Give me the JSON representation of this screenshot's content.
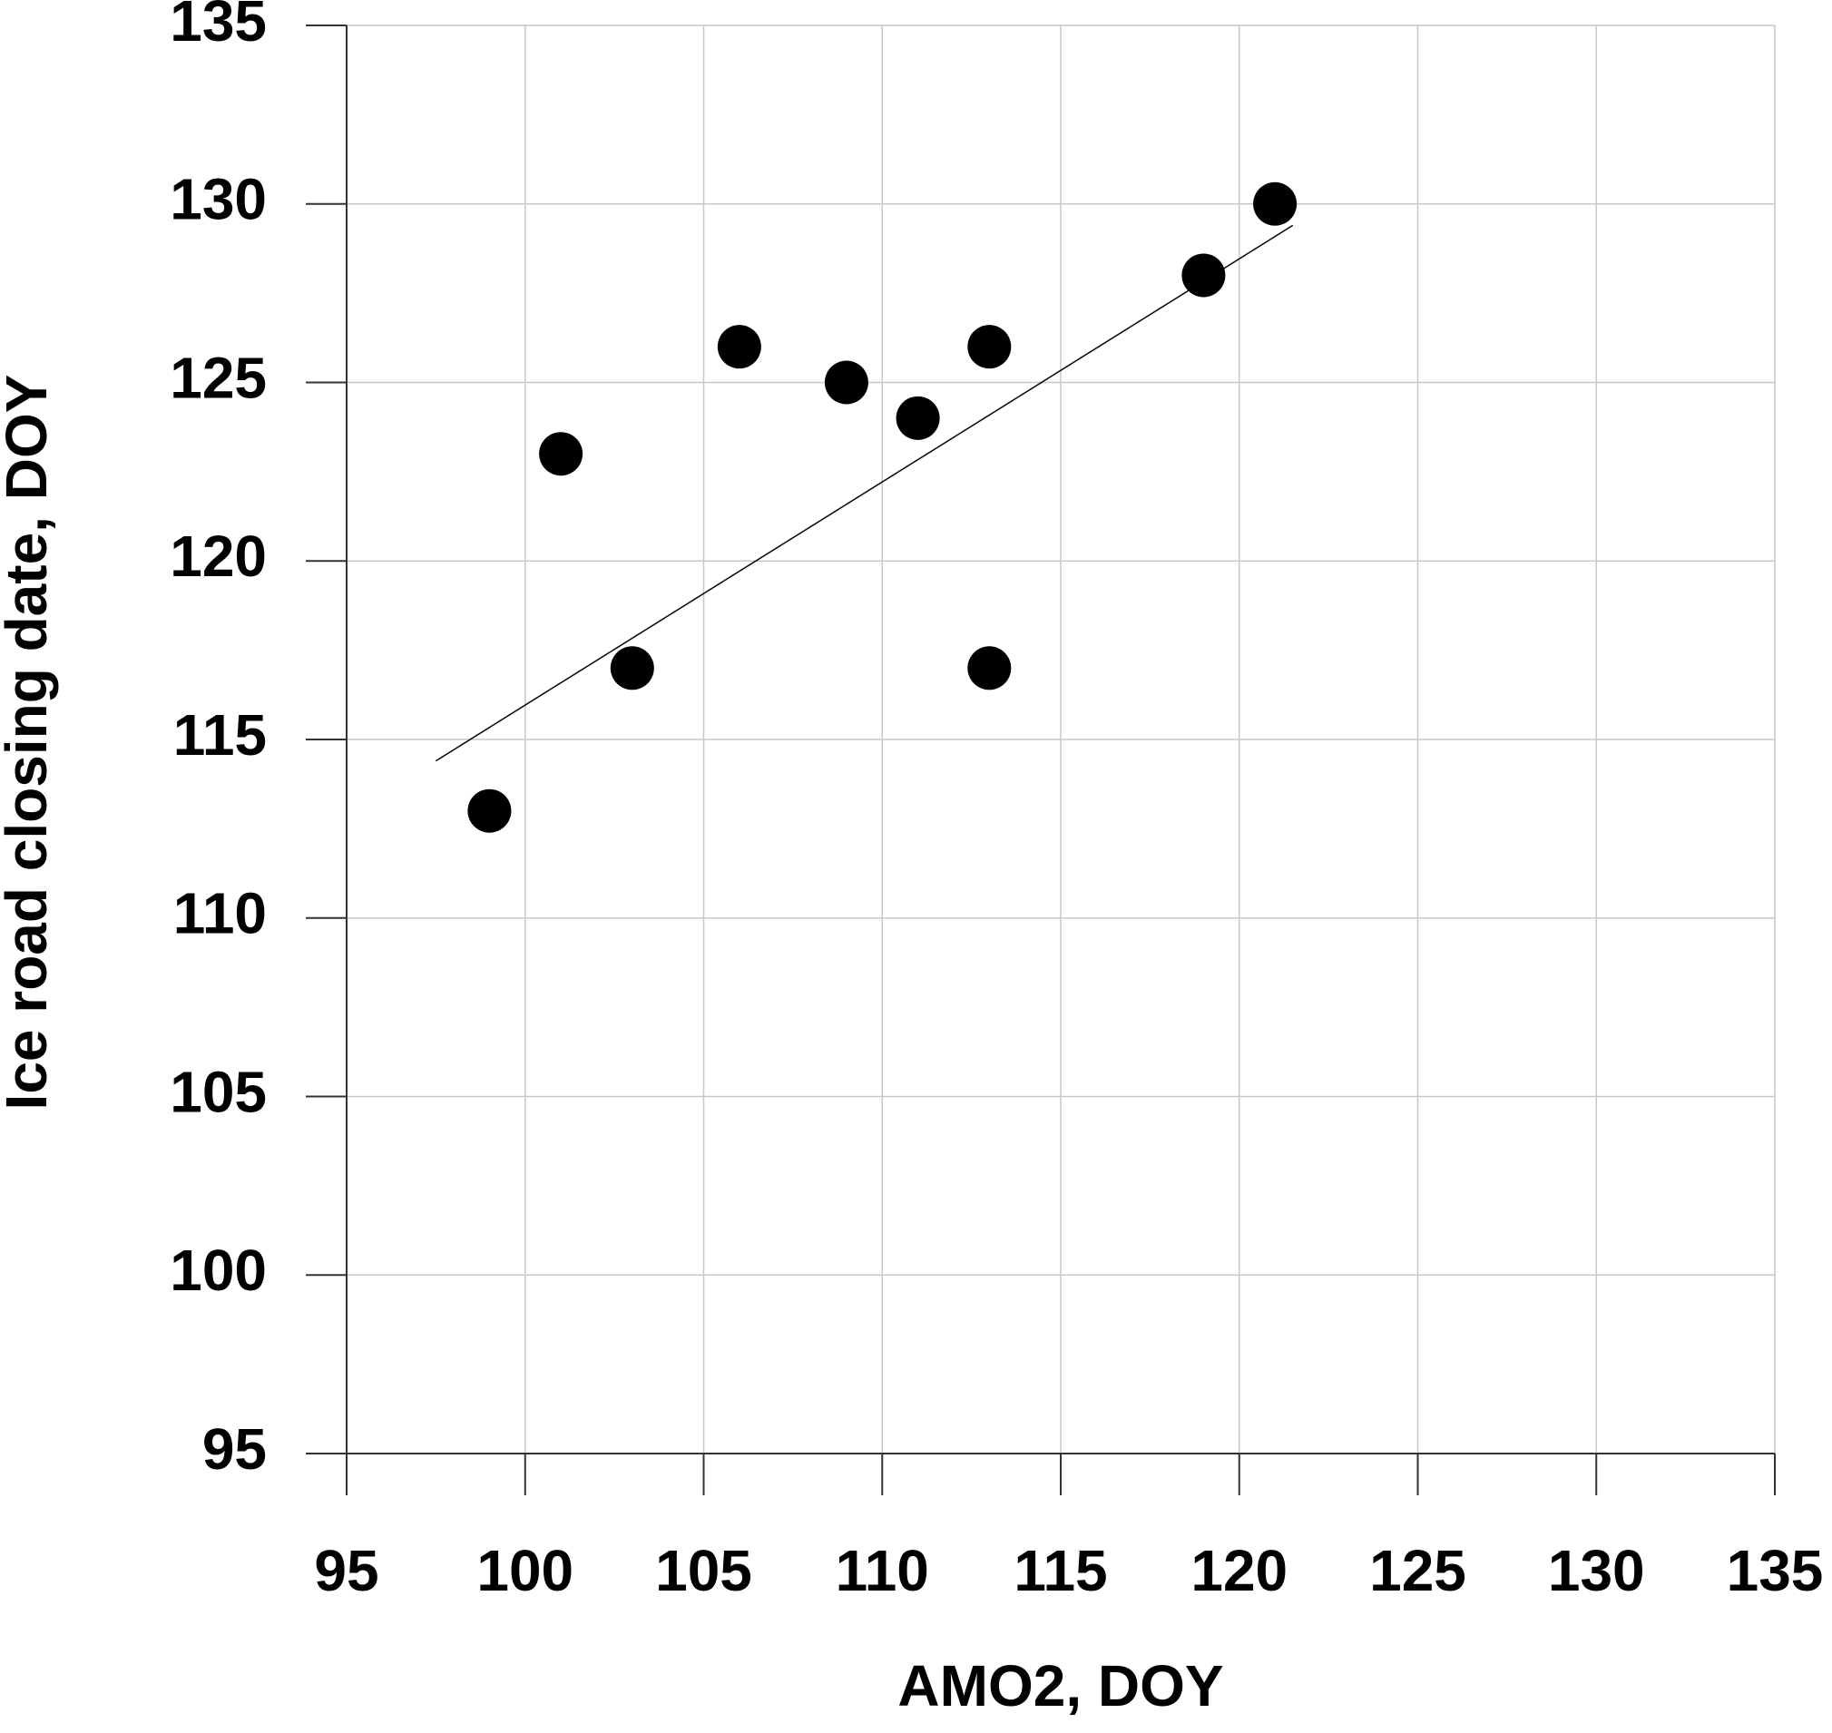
{
  "chart_data": {
    "type": "scatter",
    "x_label": "AMO2, DOY",
    "y_label": "Ice road closing date,  DOY",
    "x": [
      99,
      101,
      103,
      106,
      109,
      111,
      113,
      113,
      119,
      121
    ],
    "values": [
      113,
      123,
      117,
      126,
      125,
      124,
      126,
      117,
      128,
      130
    ],
    "color": "#000000",
    "trendline": {
      "x": [
        97.5,
        121.5
      ],
      "y": [
        114.4,
        129.4
      ]
    },
    "xlim": [
      95,
      135
    ],
    "xticks": [
      95,
      100,
      105,
      110,
      115,
      120,
      125,
      130,
      135
    ],
    "ylim": [
      95,
      135
    ],
    "yticks": [
      95,
      100,
      105,
      110,
      115,
      120,
      125,
      130,
      135
    ],
    "grid": true
  }
}
